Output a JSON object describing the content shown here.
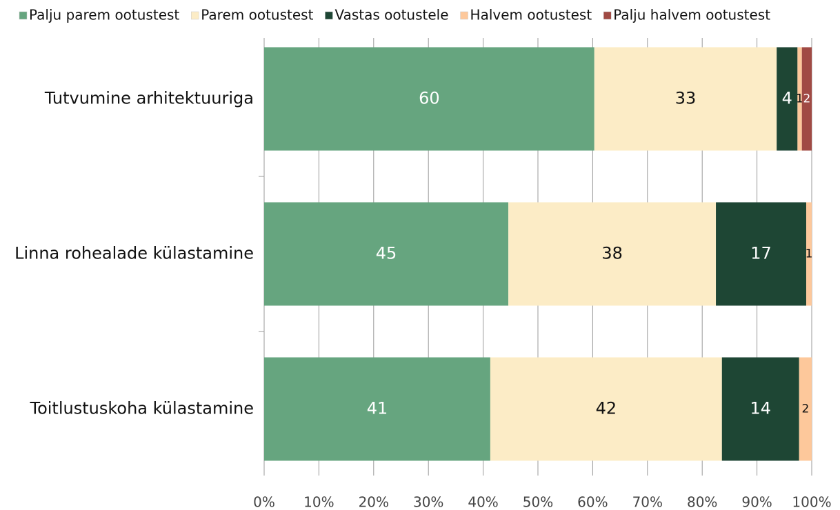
{
  "chart_data": {
    "type": "stacked-barh",
    "categories": [
      "Tutvumine arhitektuuriga",
      "Linna rohealade külastamine",
      "Toitlustuskoha külastamine"
    ],
    "series": [
      {
        "name": "Palju parem ootustest",
        "color": "#66a57f",
        "values": [
          60.3,
          44.6,
          41.3
        ],
        "value_labels": [
          "60",
          "45",
          "41"
        ]
      },
      {
        "name": "Parem ootustest",
        "color": "#fcecc6",
        "values": [
          33.3,
          37.9,
          42.3
        ],
        "value_labels": [
          "33",
          "38",
          "42"
        ]
      },
      {
        "name": "Vastas ootustele",
        "color": "#1e4634",
        "values": [
          3.8,
          16.5,
          14.1
        ],
        "value_labels": [
          "4",
          "17",
          "14"
        ]
      },
      {
        "name": "Halvem ootustest",
        "color": "#fdc89b",
        "values": [
          0.8,
          1.0,
          2.3
        ],
        "value_labels": [
          "1",
          "1",
          "2"
        ]
      },
      {
        "name": "Palju halvem ootustest",
        "color": "#a04a44",
        "values": [
          1.8,
          null,
          null
        ],
        "value_labels": [
          "2",
          null,
          null
        ]
      }
    ],
    "xlim": [
      0,
      100
    ],
    "xticks": [
      {
        "value": 0,
        "label": "0%"
      },
      {
        "value": 10,
        "label": "10%"
      },
      {
        "value": 20,
        "label": "20%"
      },
      {
        "value": 30,
        "label": "30%"
      },
      {
        "value": 40,
        "label": "40%"
      },
      {
        "value": 50,
        "label": "50%"
      },
      {
        "value": 60,
        "label": "60%"
      },
      {
        "value": 70,
        "label": "70%"
      },
      {
        "value": 80,
        "label": "80%"
      },
      {
        "value": 90,
        "label": "90%"
      },
      {
        "value": 100,
        "label": "100%"
      }
    ],
    "grid": true,
    "legend": "top"
  }
}
